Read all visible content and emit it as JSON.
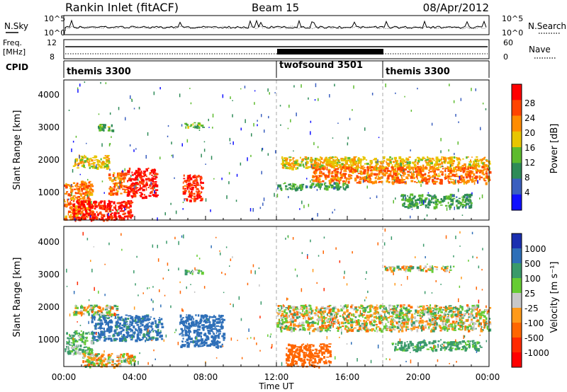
{
  "header": {
    "title": "Rankin Inlet (fitACF)",
    "beam": "Beam 15",
    "date": "08/Apr/2012"
  },
  "noise_panel": {
    "left_label": "N.Sky",
    "right_label": "N.Search",
    "left_ticks": [
      "10^5",
      "10^0"
    ],
    "right_ticks": [
      "10^5",
      "10^0"
    ]
  },
  "freq_panel": {
    "left_label_1": "Freq.",
    "left_label_2": "[MHz]",
    "right_label": "Nave",
    "left_ticks": [
      "12",
      "8"
    ],
    "right_ticks": [
      "60",
      "0"
    ]
  },
  "cpid": {
    "label": "CPID",
    "segments": [
      {
        "name": "themis 3300",
        "start_h": 0,
        "end_h": 12
      },
      {
        "name": "twofsound 3501",
        "start_h": 12,
        "end_h": 18
      },
      {
        "name": "themis 3300",
        "start_h": 18,
        "end_h": 24
      }
    ]
  },
  "power_panel": {
    "ylabel": "Slant Range [km]",
    "colorbar_label": "Power [dB]",
    "yticks": [
      "4000",
      "3000",
      "2000",
      "1000"
    ],
    "colorbar_ticks": [
      "28",
      "24",
      "20",
      "16",
      "12",
      "8",
      "4"
    ],
    "colorbar_colors": [
      "#ff0000",
      "#ff4400",
      "#ff8c00",
      "#e8c500",
      "#5dbb2e",
      "#2e8b57",
      "#3a5fbf",
      "#1010ff"
    ]
  },
  "velocity_panel": {
    "ylabel": "Slant Range [km]",
    "colorbar_label": "Velocity [m s⁻¹]",
    "colorbar_ticks": [
      "1000",
      "500",
      "100",
      "25",
      "-25",
      "-100",
      "-500",
      "-1000"
    ],
    "colorbar_colors": [
      "#1a2fb0",
      "#2e6fb8",
      "#3a9a6a",
      "#66cc33",
      "#c8c8c8",
      "#ff9a1a",
      "#ff6600",
      "#ff2a00",
      "#ff0000"
    ]
  },
  "x_axis": {
    "xlabel": "Time UT",
    "tick_labels": [
      "00:00",
      "04:00",
      "08:00",
      "12:00",
      "16:00",
      "20:00",
      "00:00"
    ]
  },
  "chart_data": {
    "type": "heatmap",
    "title": "Rankin Inlet (fitACF)",
    "x_units": "hours UT",
    "xlim": [
      0,
      24
    ],
    "ylim": [
      180,
      4500
    ],
    "xlabel": "Time UT",
    "ylabel": "Slant Range [km]",
    "mode_change_times_h": [
      12,
      18
    ],
    "panels": [
      {
        "name": "Power",
        "colorbar_label": "Power [dB]",
        "range": [
          0,
          30
        ],
        "patches": [
          {
            "t0": 0.0,
            "t1": 1.6,
            "r0": 200,
            "r1": 1400,
            "value": 22
          },
          {
            "t0": 0.5,
            "t1": 3.8,
            "r0": 200,
            "r1": 800,
            "value": 27
          },
          {
            "t0": 2.5,
            "t1": 3.5,
            "r0": 1000,
            "r1": 1700,
            "value": 22
          },
          {
            "t0": 3.5,
            "t1": 5.2,
            "r0": 900,
            "r1": 1800,
            "value": 28
          },
          {
            "t0": 6.7,
            "t1": 7.8,
            "r0": 800,
            "r1": 1600,
            "value": 26
          },
          {
            "t0": 0.5,
            "t1": 2.5,
            "r0": 1800,
            "r1": 2200,
            "value": 18
          },
          {
            "t0": 12.2,
            "t1": 24.0,
            "r0": 1800,
            "r1": 2150,
            "value": 18
          },
          {
            "t0": 14.0,
            "t1": 24.0,
            "r0": 1350,
            "r1": 1850,
            "value": 22
          },
          {
            "t0": 12.0,
            "t1": 16.0,
            "r0": 1150,
            "r1": 1350,
            "value": 11
          },
          {
            "t0": 1.8,
            "t1": 2.8,
            "r0": 2950,
            "r1": 3150,
            "value": 13
          },
          {
            "t0": 6.8,
            "t1": 7.9,
            "r0": 3050,
            "r1": 3200,
            "value": 13
          },
          {
            "t0": 19.0,
            "t1": 23.0,
            "r0": 600,
            "r1": 1000,
            "value": 11
          }
        ]
      },
      {
        "name": "Velocity",
        "colorbar_label": "Velocity [m s⁻¹]",
        "range": [
          -1000,
          1000
        ],
        "patches": [
          {
            "t0": 0.0,
            "t1": 1.6,
            "r0": 600,
            "r1": 1300,
            "value": 150
          },
          {
            "t0": 1.5,
            "t1": 5.5,
            "r0": 1000,
            "r1": 1800,
            "value": 600
          },
          {
            "t0": 6.5,
            "t1": 9.0,
            "r0": 800,
            "r1": 1800,
            "value": 700
          },
          {
            "t0": 0.5,
            "t1": 3.0,
            "r0": 1800,
            "r1": 2100,
            "value": 0
          },
          {
            "t0": 1.0,
            "t1": 4.0,
            "r0": 200,
            "r1": 600,
            "value": 0
          },
          {
            "t0": 12.0,
            "t1": 24.0,
            "r0": 1300,
            "r1": 2100,
            "value": 0
          },
          {
            "t0": 12.5,
            "t1": 15.0,
            "r0": 200,
            "r1": 900,
            "value": -300
          },
          {
            "t0": 18.5,
            "t1": 23.5,
            "r0": 700,
            "r1": 1000,
            "value": 200
          },
          {
            "t0": 18.0,
            "t1": 22.0,
            "r0": 3150,
            "r1": 3300,
            "value": 0
          },
          {
            "t0": 6.8,
            "t1": 7.9,
            "r0": 3050,
            "r1": 3200,
            "value": 110
          }
        ]
      }
    ]
  }
}
